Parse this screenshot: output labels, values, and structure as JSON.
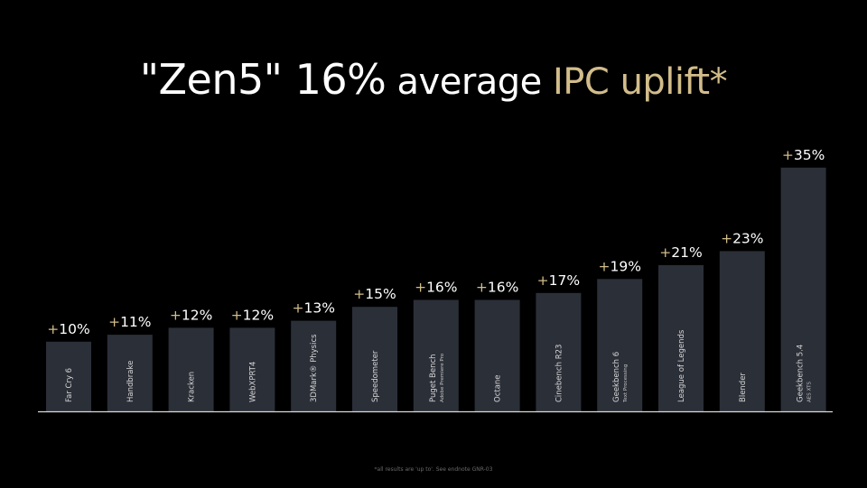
{
  "title": {
    "part1": "\"Zen5\" 16%",
    "part2": " average ",
    "part3": "IPC uplift*"
  },
  "footnote": "*all results are 'up to'. See endnote GNR-03",
  "colors": {
    "background": "#000000",
    "bar_fill": "#2b2f38",
    "accent": "#d2bd8a",
    "text": "#ffffff",
    "baseline": "#d9d9d9"
  },
  "chart_data": {
    "type": "bar",
    "title": "\"Zen5\" 16% average IPC uplift*",
    "categories": [
      [
        "Far Cry 6"
      ],
      [
        "Handbrake"
      ],
      [
        "Kracken"
      ],
      [
        "WebXPRT4"
      ],
      [
        "3DMark® Physics"
      ],
      [
        "Speedometer"
      ],
      [
        "Puget Bench",
        "Adobe Premiere Pro"
      ],
      [
        "Octane"
      ],
      [
        "Cinebench R23"
      ],
      [
        "Geekbench 6",
        "Text Processing"
      ],
      [
        "League of Legends"
      ],
      [
        "Blender"
      ],
      [
        "Geekbench 5.4",
        "AES XTS"
      ]
    ],
    "values": [
      10,
      11,
      12,
      12,
      13,
      15,
      16,
      16,
      17,
      19,
      21,
      23,
      35
    ],
    "value_prefix": "+",
    "value_suffix": "%",
    "ylim": [
      0,
      35
    ],
    "grid": false,
    "legend": "none"
  }
}
